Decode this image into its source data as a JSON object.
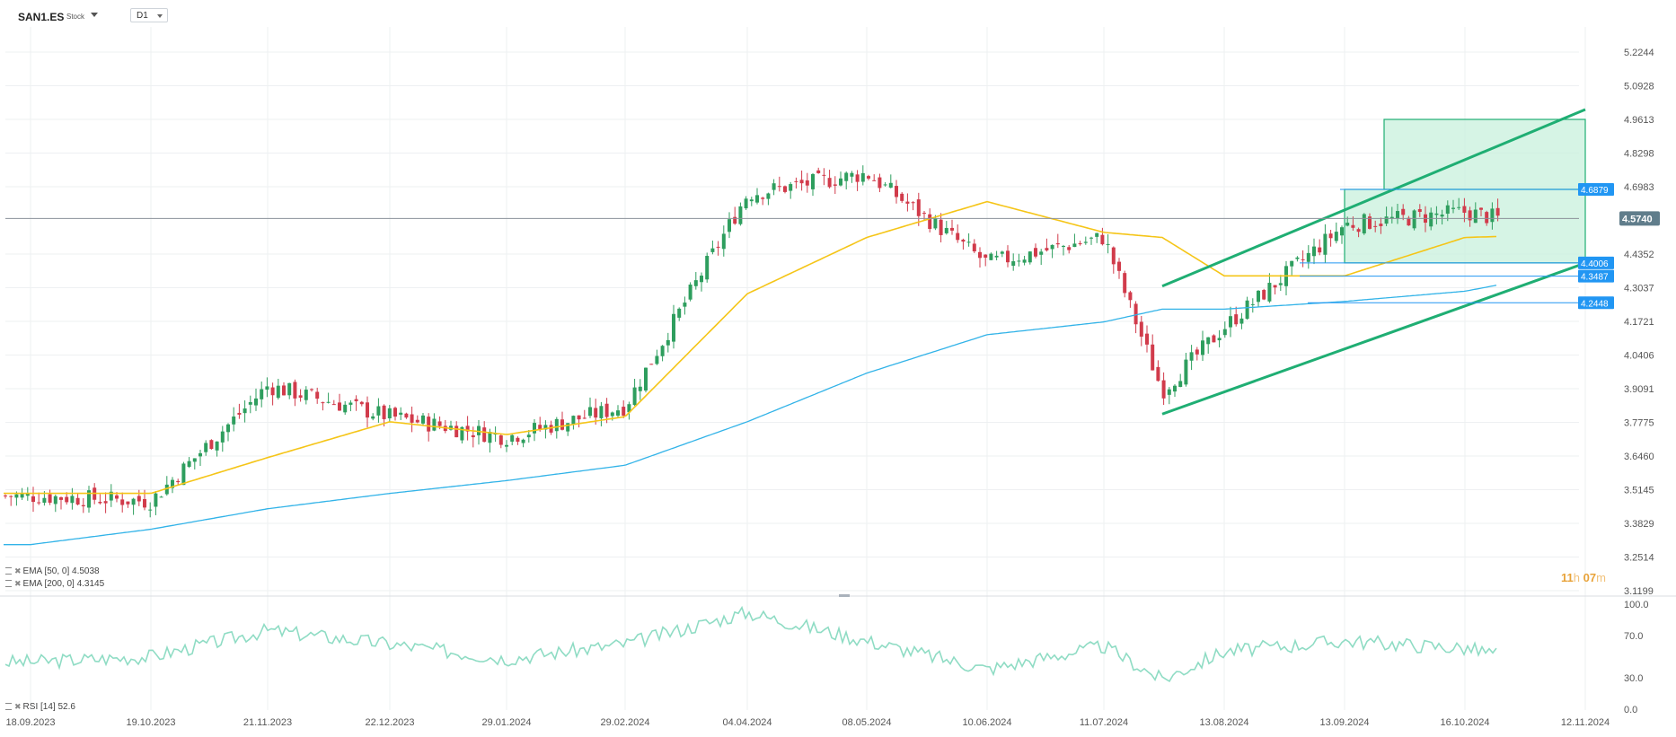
{
  "header": {
    "symbol": "SAN1.ES",
    "symbol_type": "Stock",
    "timeframe": "D1"
  },
  "indicators": {
    "ema50_label": "EMA [50, 0]",
    "ema50_value": "4.5038",
    "ema200_label": "EMA [200, 0]",
    "ema200_value": "4.3145",
    "rsi_label": "RSI [14]",
    "rsi_value": "52.6"
  },
  "countdown": {
    "hours": "11",
    "h": "h",
    "minutes": "07",
    "m": "m"
  },
  "colors": {
    "up": "#2e9e5e",
    "down": "#d13b4b",
    "ema50": "#f5c518",
    "ema200": "#32b3e8",
    "channel": "#1fae73",
    "zone_fill": "#c8f0dc",
    "rsi": "#8fdcc4",
    "price_label_bg": "#607d8b",
    "level_label_bg": "#2196f3"
  },
  "chart_data": {
    "type": "candlestick",
    "price_axis_ticks": [
      "5.2244",
      "5.0928",
      "4.9613",
      "4.8298",
      "4.6983",
      "4.4352",
      "4.3037",
      "4.1721",
      "4.0406",
      "3.9091",
      "3.7775",
      "3.6460",
      "3.5145",
      "3.3829",
      "3.2514",
      "3.1199"
    ],
    "ylim": [
      3.1199,
      5.2244
    ],
    "date_ticks": [
      "18.09.2023",
      "19.10.2023",
      "21.11.2023",
      "22.12.2023",
      "29.01.2024",
      "29.02.2024",
      "04.04.2024",
      "08.05.2024",
      "10.06.2024",
      "11.07.2024",
      "13.08.2024",
      "13.09.2024",
      "16.10.2024",
      "12.11.2024"
    ],
    "current_price": "4.5740",
    "levels": [
      {
        "value": "4.6879"
      },
      {
        "value": "4.4006"
      },
      {
        "value": "4.3487"
      },
      {
        "value": "4.2448"
      }
    ],
    "close_anchors": [
      [
        "18.09.2023",
        3.49
      ],
      [
        "19.10.2023",
        3.47
      ],
      [
        "21.11.2023",
        3.92
      ],
      [
        "22.12.2023",
        3.8
      ],
      [
        "29.01.2024",
        3.72
      ],
      [
        "29.02.2024",
        3.84
      ],
      [
        "04.04.2024",
        4.67
      ],
      [
        "08.05.2024",
        4.75
      ],
      [
        "10.06.2024",
        4.4
      ],
      [
        "11.07.2024",
        4.5
      ],
      [
        "26.07.2024",
        3.9
      ],
      [
        "13.08.2024",
        4.15
      ],
      [
        "13.09.2024",
        4.55
      ],
      [
        "16.10.2024",
        4.6
      ],
      [
        "29.10.2024",
        4.574
      ]
    ],
    "ema50_anchors": [
      [
        "18.09.2023",
        3.5
      ],
      [
        "19.10.2023",
        3.5
      ],
      [
        "21.11.2023",
        3.64
      ],
      [
        "22.12.2023",
        3.78
      ],
      [
        "29.01.2024",
        3.73
      ],
      [
        "29.02.2024",
        3.8
      ],
      [
        "04.04.2024",
        4.28
      ],
      [
        "08.05.2024",
        4.5
      ],
      [
        "10.06.2024",
        4.64
      ],
      [
        "11.07.2024",
        4.52
      ],
      [
        "26.07.2024",
        4.5
      ],
      [
        "13.08.2024",
        4.35
      ],
      [
        "13.09.2024",
        4.35
      ],
      [
        "16.10.2024",
        4.5
      ],
      [
        "29.10.2024",
        4.5038
      ]
    ],
    "ema200_anchors": [
      [
        "18.09.2023",
        3.3
      ],
      [
        "19.10.2023",
        3.36
      ],
      [
        "21.11.2023",
        3.44
      ],
      [
        "22.12.2023",
        3.5
      ],
      [
        "29.01.2024",
        3.55
      ],
      [
        "29.02.2024",
        3.61
      ],
      [
        "04.04.2024",
        3.78
      ],
      [
        "08.05.2024",
        3.97
      ],
      [
        "10.06.2024",
        4.12
      ],
      [
        "11.07.2024",
        4.17
      ],
      [
        "26.07.2024",
        4.22
      ],
      [
        "13.08.2024",
        4.22
      ],
      [
        "13.09.2024",
        4.25
      ],
      [
        "16.10.2024",
        4.29
      ],
      [
        "29.10.2024",
        4.3145
      ]
    ],
    "rsi": {
      "ylim": [
        0,
        100
      ],
      "ticks": [
        "100.0",
        "70.0",
        "30.0",
        "0.0"
      ],
      "anchors": [
        [
          "18.09.2023",
          45
        ],
        [
          "19.10.2023",
          50
        ],
        [
          "21.11.2023",
          75
        ],
        [
          "22.12.2023",
          62
        ],
        [
          "29.01.2024",
          48
        ],
        [
          "29.02.2024",
          62
        ],
        [
          "04.04.2024",
          92
        ],
        [
          "08.05.2024",
          65
        ],
        [
          "10.06.2024",
          38
        ],
        [
          "11.07.2024",
          60
        ],
        [
          "26.07.2024",
          28
        ],
        [
          "13.08.2024",
          55
        ],
        [
          "13.09.2024",
          65
        ],
        [
          "16.10.2024",
          58
        ],
        [
          "29.10.2024",
          52.6
        ]
      ]
    },
    "trend_channel": {
      "upper": [
        [
          "26.07.2024",
          4.31
        ],
        [
          "12.11.2024",
          5.0
        ]
      ],
      "lower": [
        [
          "26.07.2024",
          3.81
        ],
        [
          "12.11.2024",
          4.4
        ]
      ]
    },
    "zones": [
      {
        "from": "13.09.2024",
        "to": "12.11.2024",
        "low": 4.4006,
        "high": 4.6879
      },
      {
        "from": "04.10.2024",
        "to": "12.11.2024",
        "low": 4.6879,
        "high": 4.9613
      }
    ]
  }
}
